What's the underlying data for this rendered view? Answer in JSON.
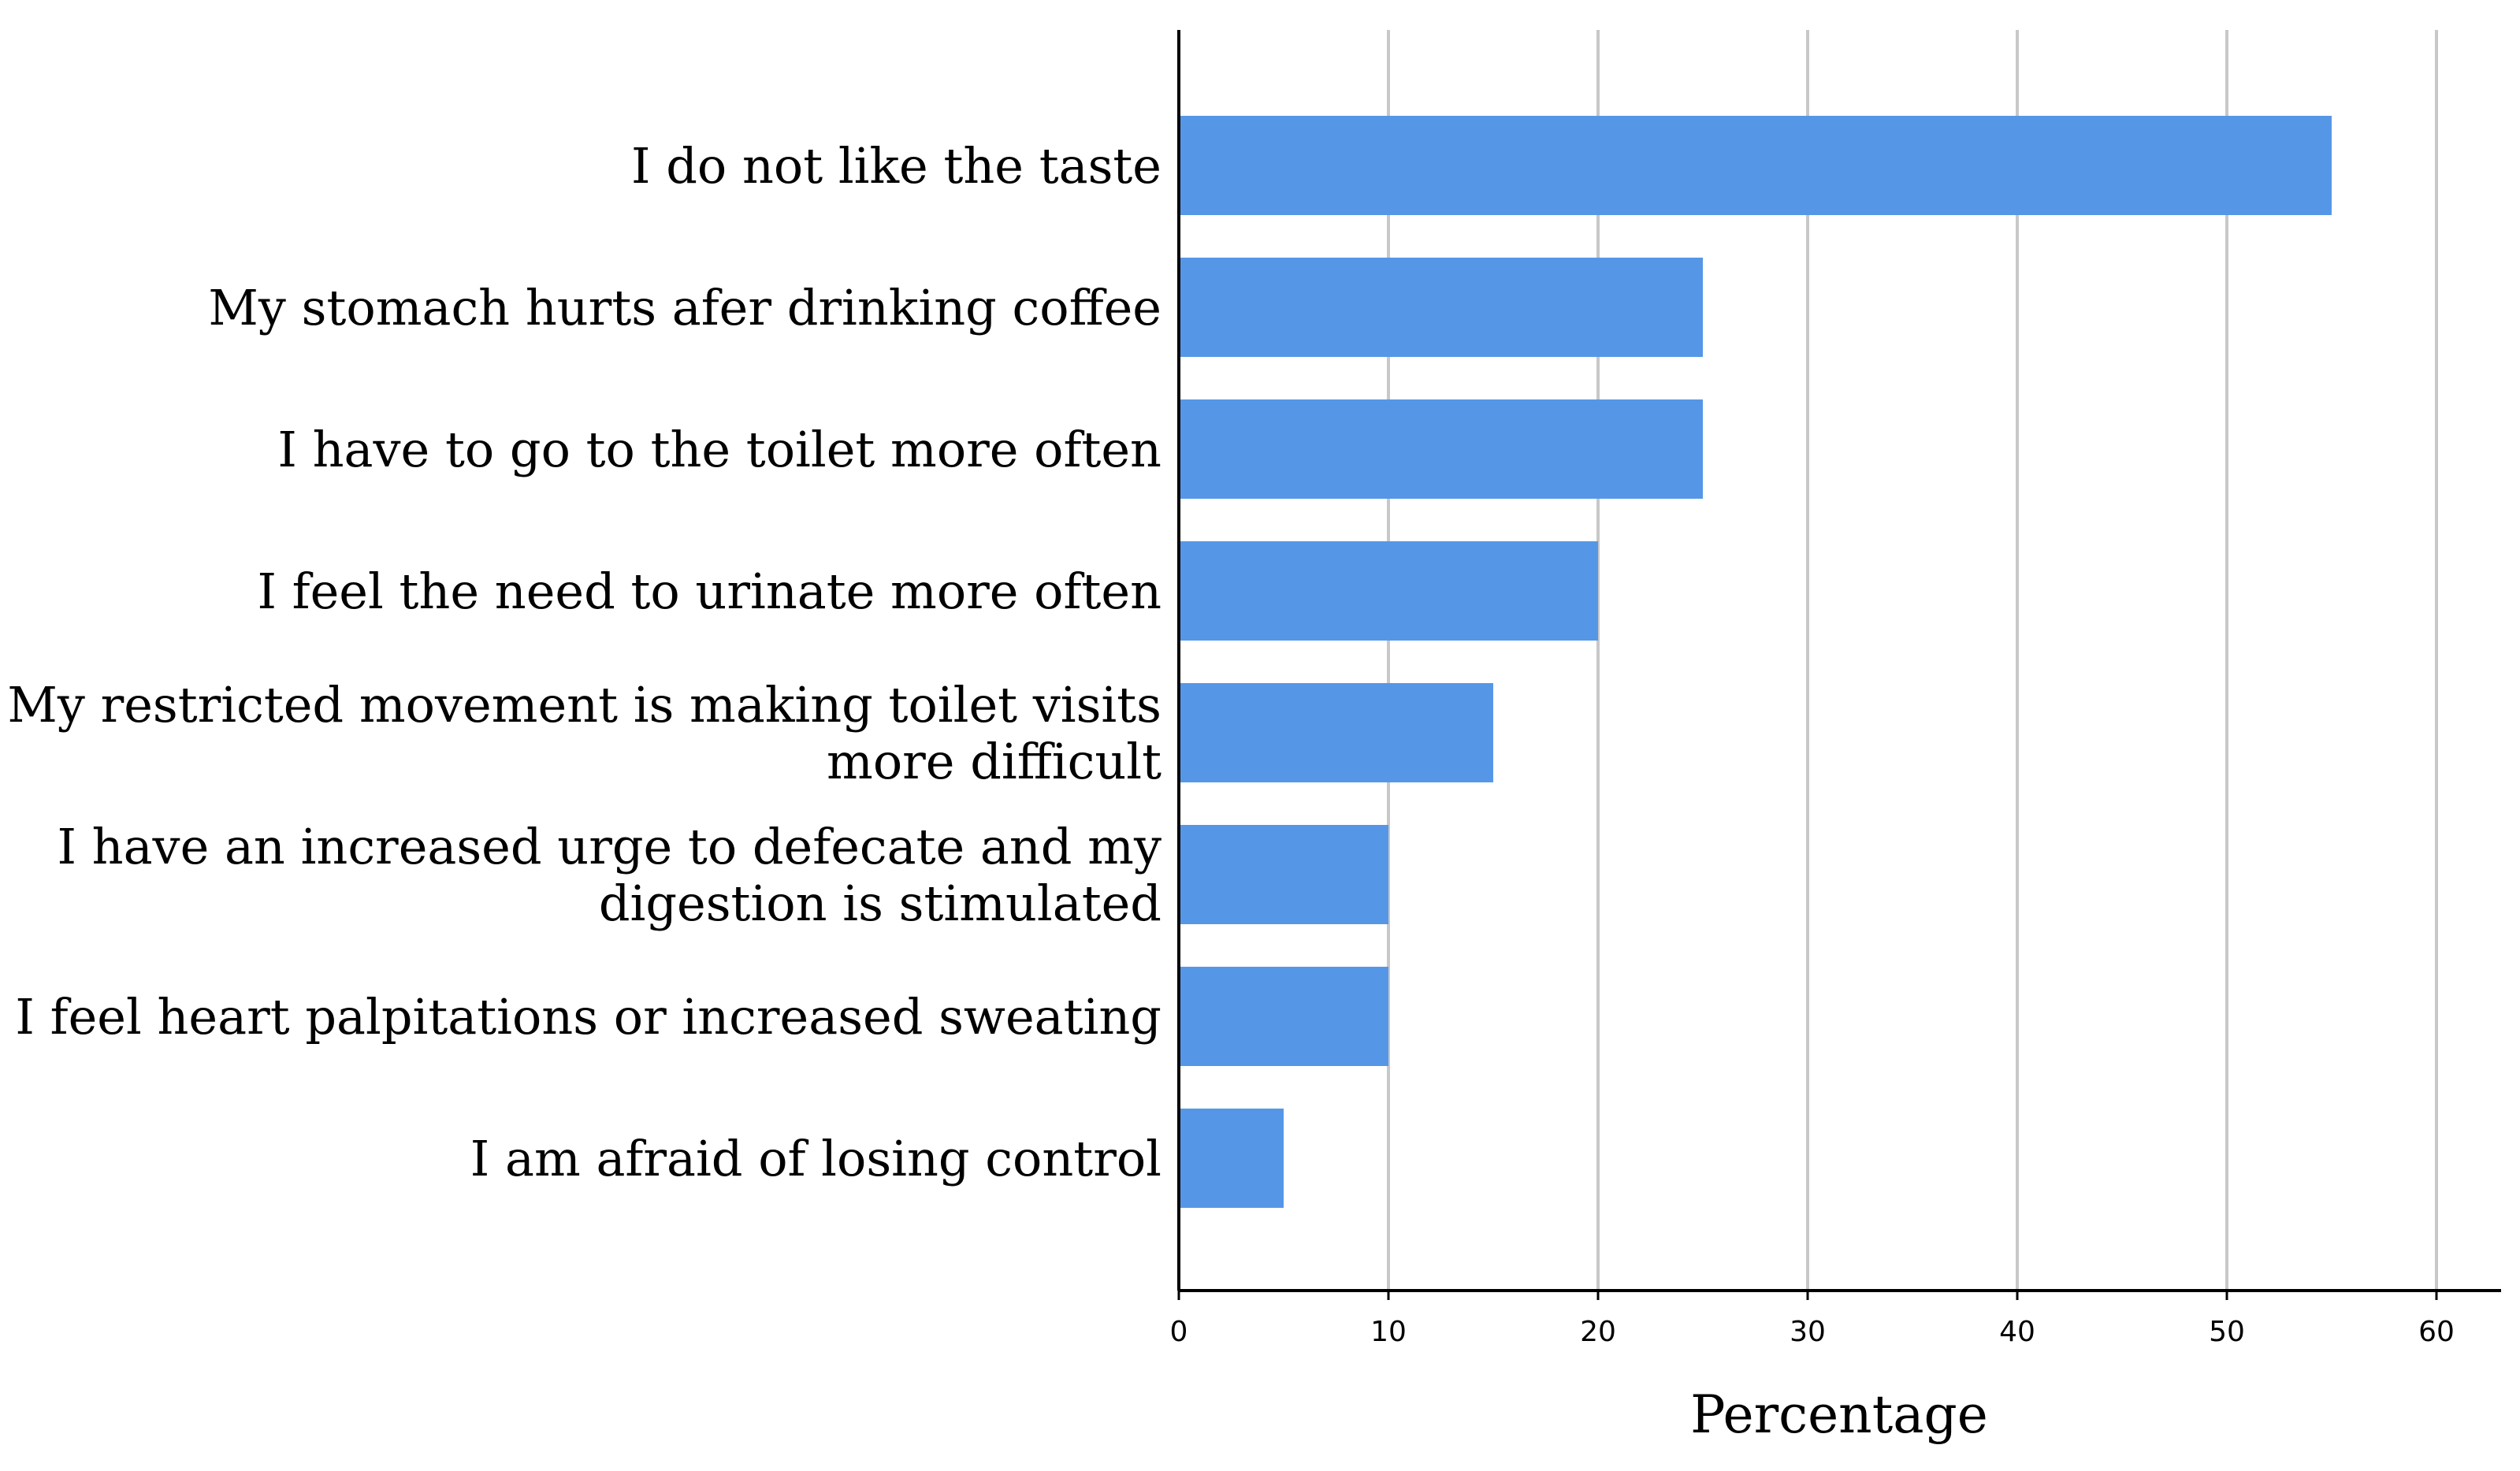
{
  "chart_data": {
    "type": "bar",
    "orientation": "horizontal",
    "categories": [
      [
        "I do not like the taste"
      ],
      [
        "My stomach hurts afer drinking coffee"
      ],
      [
        "I have to go to the toilet more often"
      ],
      [
        "I feel the need to urinate more often"
      ],
      [
        "My restricted movement is making toilet visits",
        "more difficult"
      ],
      [
        "I have an increased urge to defecate and my",
        "digestion is stimulated"
      ],
      [
        "I feel heart palpitations or increased sweating"
      ],
      [
        "I am afraid of losing control"
      ]
    ],
    "values": [
      55,
      25,
      25,
      20,
      15,
      10,
      10,
      5
    ],
    "xlabel": "Percentage",
    "ylabel": "",
    "xlim": [
      0,
      63
    ],
    "xticks": [
      "0",
      "10",
      "20",
      "30",
      "40",
      "50",
      "60"
    ],
    "grid": "vertical",
    "bar_color": "#5597e6",
    "gridline_color": "#c8c8c8",
    "axis_color": "#000000"
  }
}
